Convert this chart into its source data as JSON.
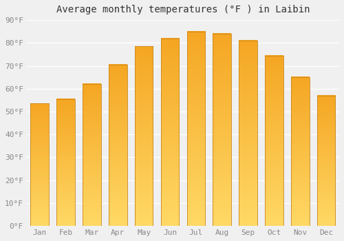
{
  "title": "Average monthly temperatures (°F ) in Laibin",
  "months": [
    "Jan",
    "Feb",
    "Mar",
    "Apr",
    "May",
    "Jun",
    "Jul",
    "Aug",
    "Sep",
    "Oct",
    "Nov",
    "Dec"
  ],
  "values": [
    53.5,
    55.5,
    62,
    70.5,
    78.5,
    82,
    85,
    84,
    81,
    74.5,
    65,
    57
  ],
  "bar_color_top": "#F5A623",
  "bar_color_bottom": "#FFD966",
  "bar_edge_color": "#C8851A",
  "ylim": [
    0,
    90
  ],
  "yticks": [
    0,
    10,
    20,
    30,
    40,
    50,
    60,
    70,
    80,
    90
  ],
  "ytick_labels": [
    "0°F",
    "10°F",
    "20°F",
    "30°F",
    "40°F",
    "50°F",
    "60°F",
    "70°F",
    "80°F",
    "90°F"
  ],
  "bg_color": "#f0f0f0",
  "grid_color": "#ffffff",
  "title_fontsize": 10,
  "tick_fontsize": 8,
  "bar_width": 0.7
}
